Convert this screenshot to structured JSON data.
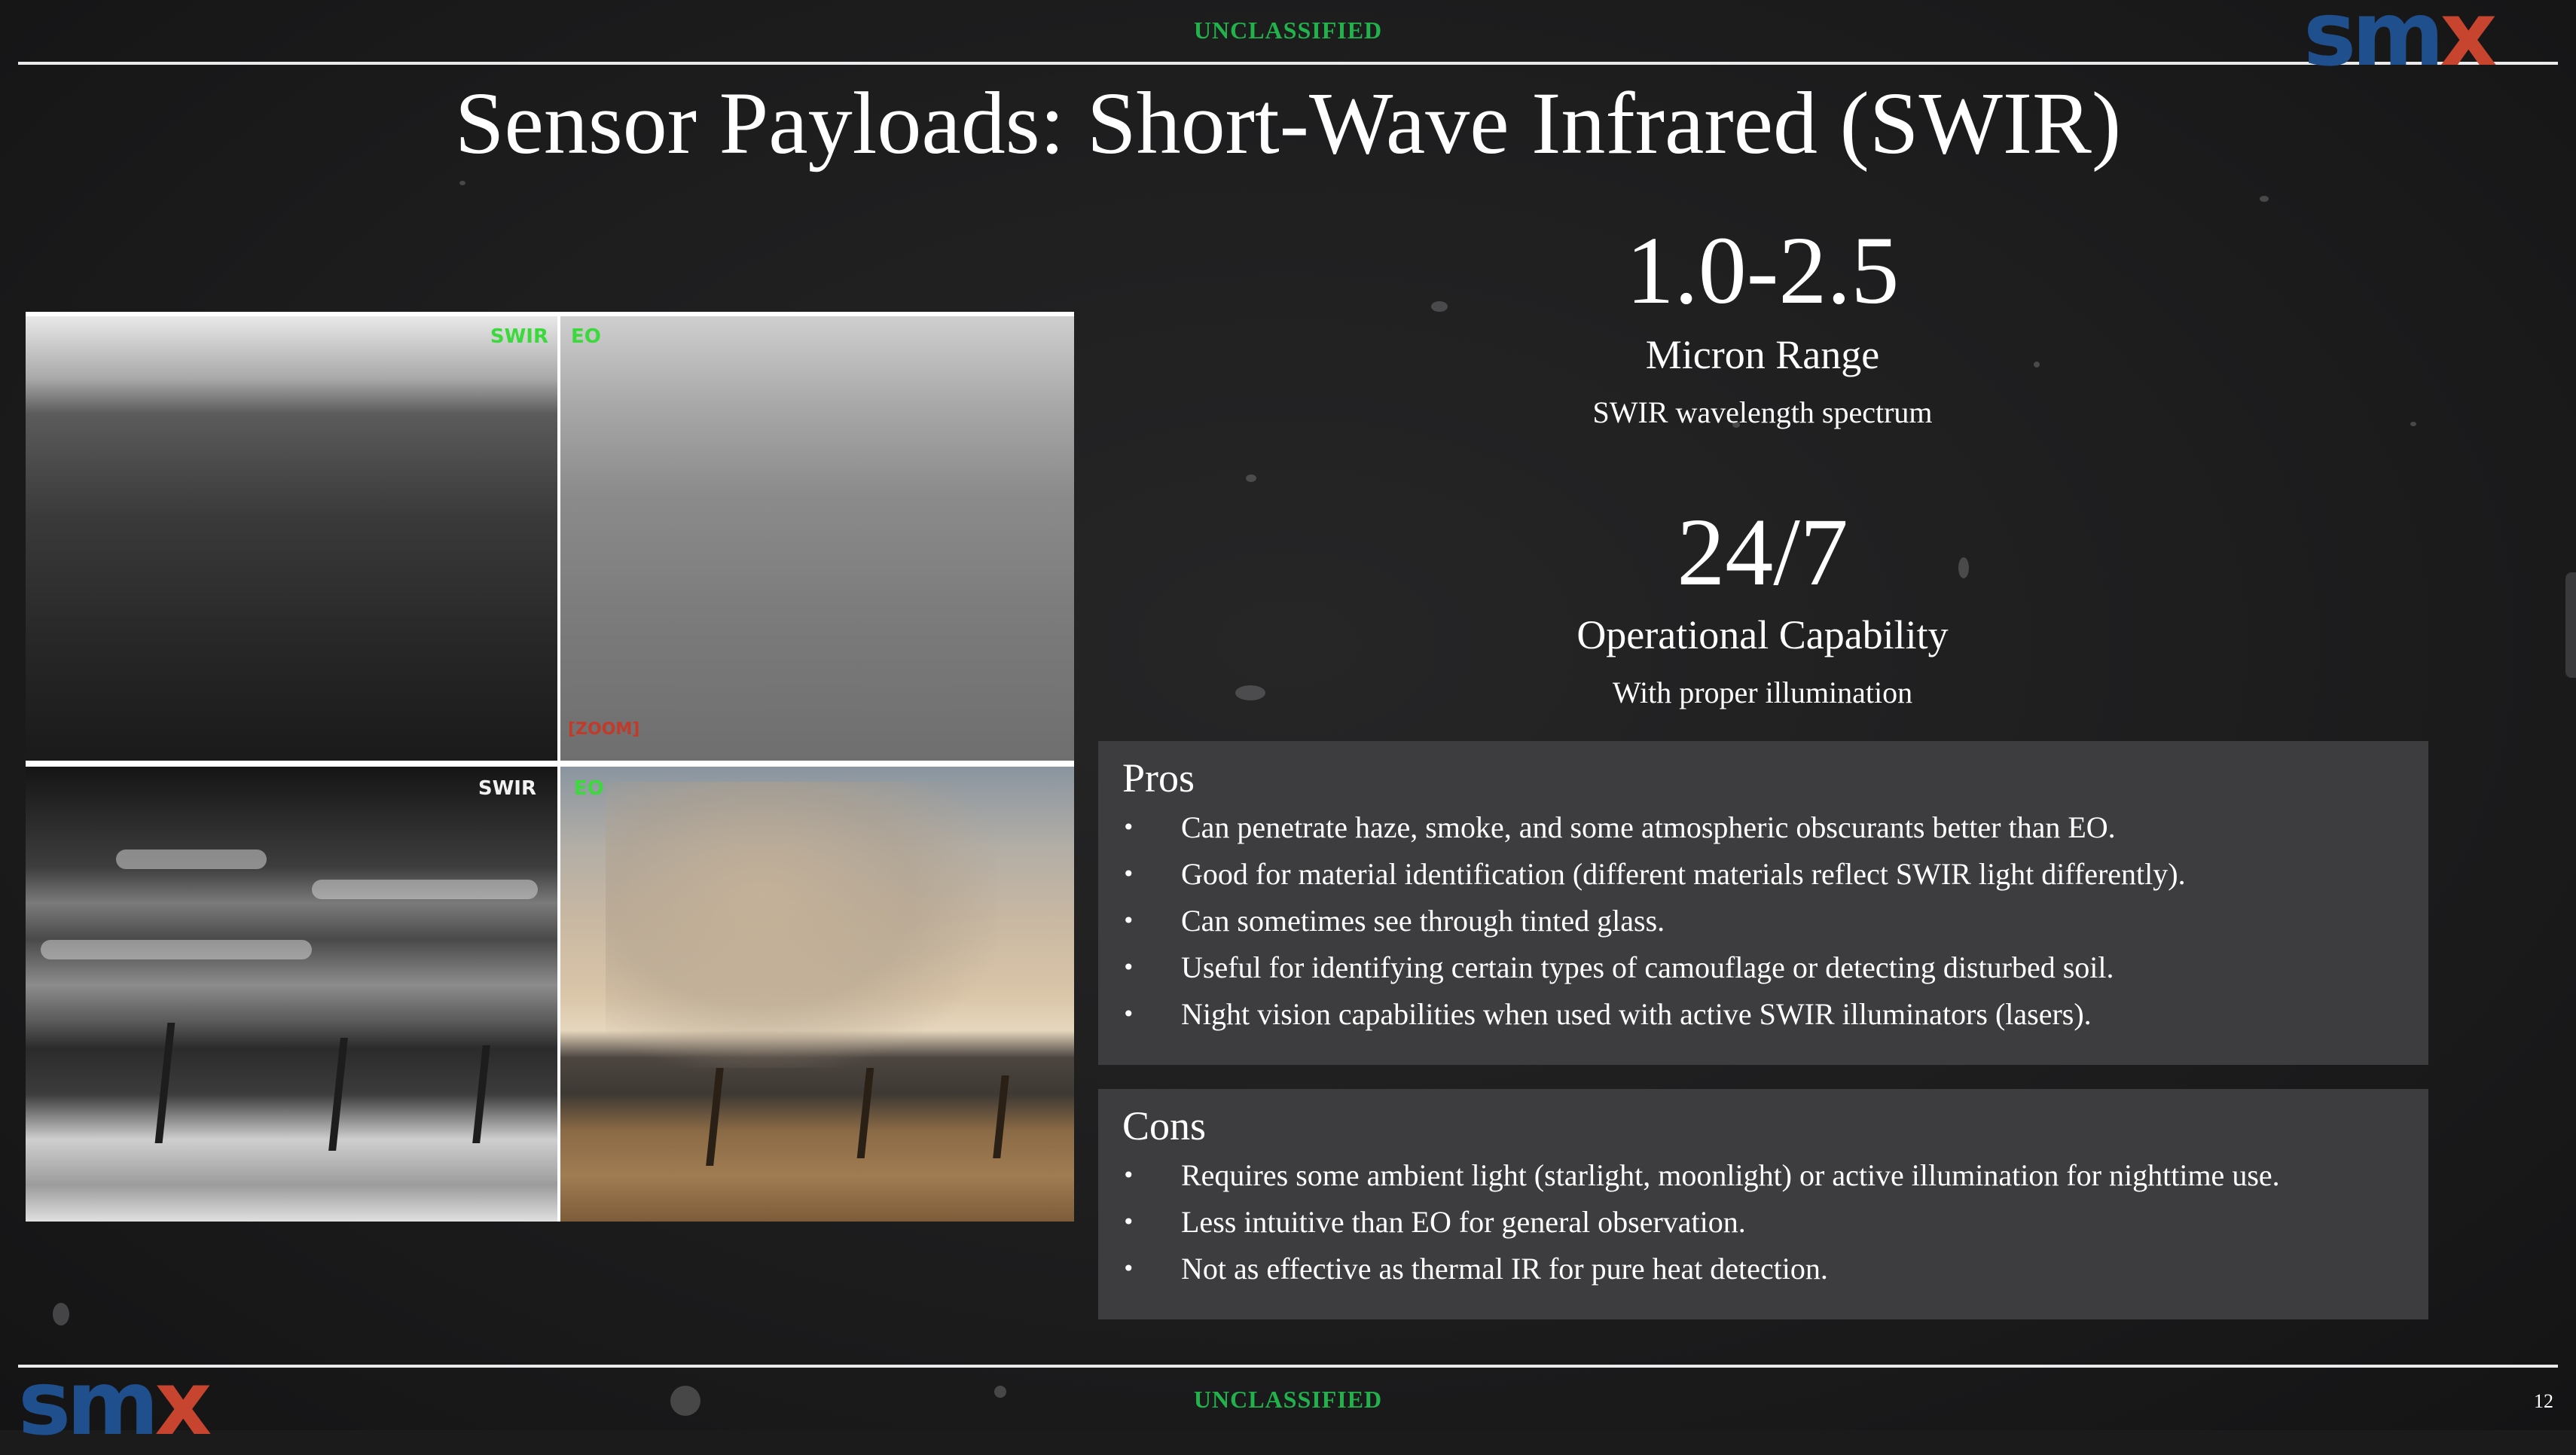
{
  "classification": {
    "top": "UNCLASSIFIED",
    "bottom": "UNCLASSIFIED"
  },
  "logo": {
    "sm": "sm",
    "x": "x"
  },
  "title": "Sensor Payloads: Short-Wave Infrared (SWIR)",
  "imagery": {
    "top_left_tag": "SWIR",
    "top_right_tag": "EO",
    "top_right_corner_tag": "[ZOOM]",
    "bottom_left_tag": "SWIR",
    "bottom_right_tag": "EO"
  },
  "stats": [
    {
      "value": "1.0-2.5",
      "label": "Micron Range",
      "sub": "SWIR wavelength spectrum"
    },
    {
      "value": "24/7",
      "label": "Operational Capability",
      "sub": "With proper illumination"
    }
  ],
  "pros": {
    "heading": "Pros",
    "items": [
      "Can penetrate haze, smoke, and some atmospheric obscurants better than EO.",
      "Good for material identification (different materials reflect SWIR light differently).",
      "Can sometimes see through tinted glass.",
      "Useful for identifying certain types of camouflage or detecting disturbed soil.",
      "Night vision capabilities when used with active SWIR illuminators (lasers)."
    ]
  },
  "cons": {
    "heading": "Cons",
    "items": [
      "Requires some ambient light (starlight, moonlight) or active illumination for nighttime use.",
      "Less intuitive than EO for general observation.",
      "Not as effective as thermal IR for pure heat detection."
    ]
  },
  "bullet_glyph": "•",
  "page_number": "12",
  "colors": {
    "classification": "#22b24c",
    "logo_blue": "#1f4f8c",
    "logo_red": "#c7452e",
    "box_bg": "#3d3d40",
    "background": "#1b1b1c"
  }
}
